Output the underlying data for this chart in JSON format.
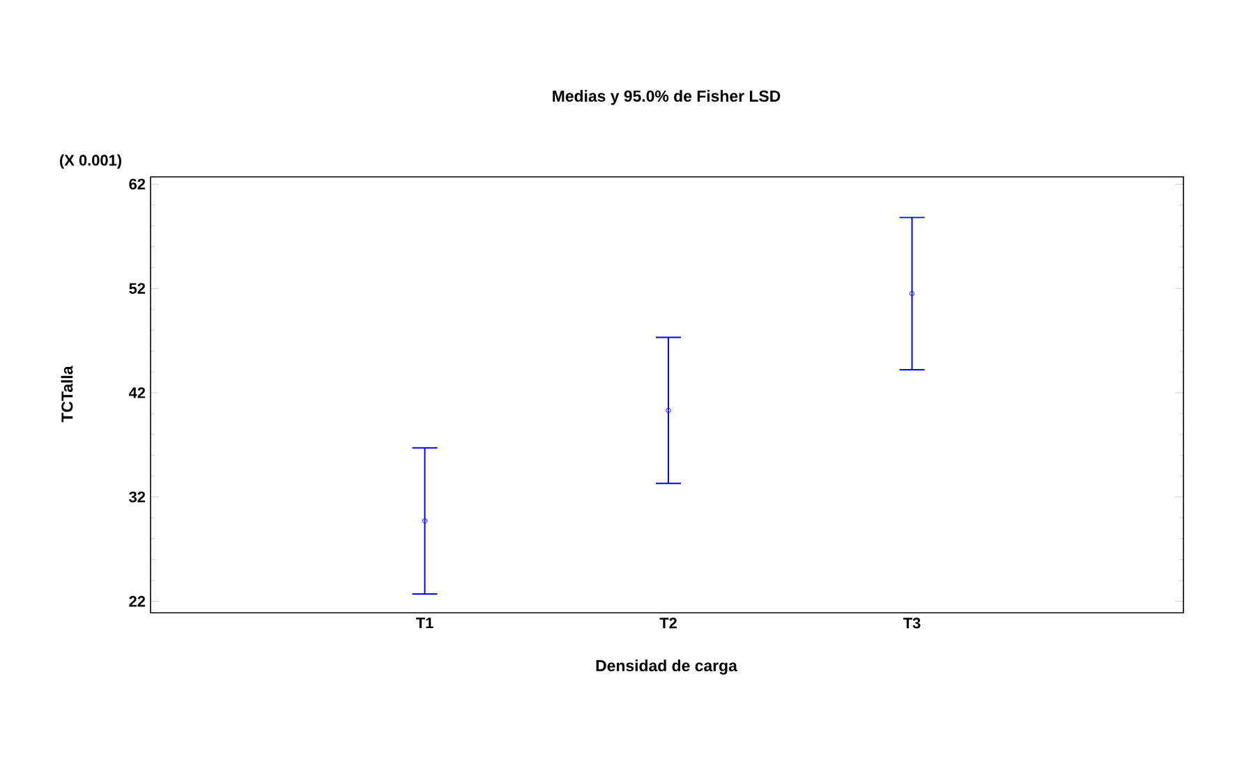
{
  "chart_data": {
    "type": "scatter",
    "title": "Medias y 95.0% de Fisher LSD",
    "xlabel": "Densidad de carga",
    "ylabel": "TCTalla",
    "annotations": [
      "(X 0.001)"
    ],
    "categories": [
      "T1",
      "T2",
      "T3"
    ],
    "series": [
      {
        "color": "#0000ff",
        "values": [
          29.7,
          40.3,
          51.5
        ],
        "errors": [
          7.0,
          7.0,
          7.3
        ]
      }
    ],
    "ylim": [
      20.9,
      62.7
    ],
    "yticks": [
      22,
      32,
      42,
      52,
      62
    ],
    "grid": false,
    "marker": "circle"
  }
}
